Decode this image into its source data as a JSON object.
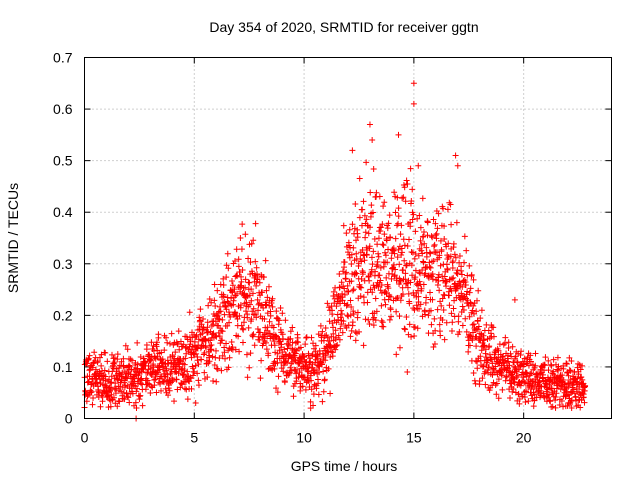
{
  "chart_data": {
    "type": "scatter",
    "title": "Day 354 of 2020, SRMTID for receiver ggtn",
    "xlabel": "GPS time / hours",
    "ylabel": "SRMTID / TECUs",
    "xlim": [
      0,
      24
    ],
    "ylim": [
      0,
      0.7
    ],
    "xticks": [
      0,
      5,
      10,
      15,
      20
    ],
    "xtick_labels": [
      "0",
      "5",
      "10",
      "15",
      "20"
    ],
    "yticks": [
      0,
      0.1,
      0.2,
      0.3,
      0.4,
      0.5,
      0.6,
      0.7
    ],
    "ytick_labels": [
      "0",
      "0.1",
      "0.2",
      "0.3",
      "0.4",
      "0.5",
      "0.6",
      "0.7"
    ],
    "grid": true,
    "marker": "+",
    "marker_color": "#ff0000",
    "x_range_observed": [
      0,
      22.8
    ],
    "trend": [
      {
        "x": 0.0,
        "y": 0.08
      },
      {
        "x": 1.0,
        "y": 0.075
      },
      {
        "x": 2.0,
        "y": 0.075
      },
      {
        "x": 3.0,
        "y": 0.095
      },
      {
        "x": 4.0,
        "y": 0.1
      },
      {
        "x": 5.0,
        "y": 0.12
      },
      {
        "x": 5.8,
        "y": 0.16
      },
      {
        "x": 6.5,
        "y": 0.2
      },
      {
        "x": 7.2,
        "y": 0.24
      },
      {
        "x": 8.0,
        "y": 0.22
      },
      {
        "x": 8.6,
        "y": 0.15
      },
      {
        "x": 9.5,
        "y": 0.11
      },
      {
        "x": 10.3,
        "y": 0.09
      },
      {
        "x": 11.0,
        "y": 0.12
      },
      {
        "x": 11.6,
        "y": 0.2
      },
      {
        "x": 12.3,
        "y": 0.28
      },
      {
        "x": 13.2,
        "y": 0.31
      },
      {
        "x": 14.2,
        "y": 0.3
      },
      {
        "x": 15.0,
        "y": 0.29
      },
      {
        "x": 16.0,
        "y": 0.28
      },
      {
        "x": 16.8,
        "y": 0.27
      },
      {
        "x": 17.5,
        "y": 0.2
      },
      {
        "x": 18.3,
        "y": 0.12
      },
      {
        "x": 19.5,
        "y": 0.09
      },
      {
        "x": 20.5,
        "y": 0.07
      },
      {
        "x": 22.0,
        "y": 0.07
      },
      {
        "x": 22.8,
        "y": 0.065
      }
    ],
    "notable_points": [
      {
        "x": 2.35,
        "y": 0.0
      },
      {
        "x": 10.3,
        "y": 0.02
      },
      {
        "x": 7.1,
        "y": 0.35
      },
      {
        "x": 12.2,
        "y": 0.52
      },
      {
        "x": 13.0,
        "y": 0.57
      },
      {
        "x": 13.1,
        "y": 0.54
      },
      {
        "x": 14.3,
        "y": 0.55
      },
      {
        "x": 15.0,
        "y": 0.65
      },
      {
        "x": 15.0,
        "y": 0.61
      },
      {
        "x": 15.2,
        "y": 0.49
      },
      {
        "x": 16.9,
        "y": 0.51
      },
      {
        "x": 17.0,
        "y": 0.49
      },
      {
        "x": 19.6,
        "y": 0.23
      }
    ]
  }
}
